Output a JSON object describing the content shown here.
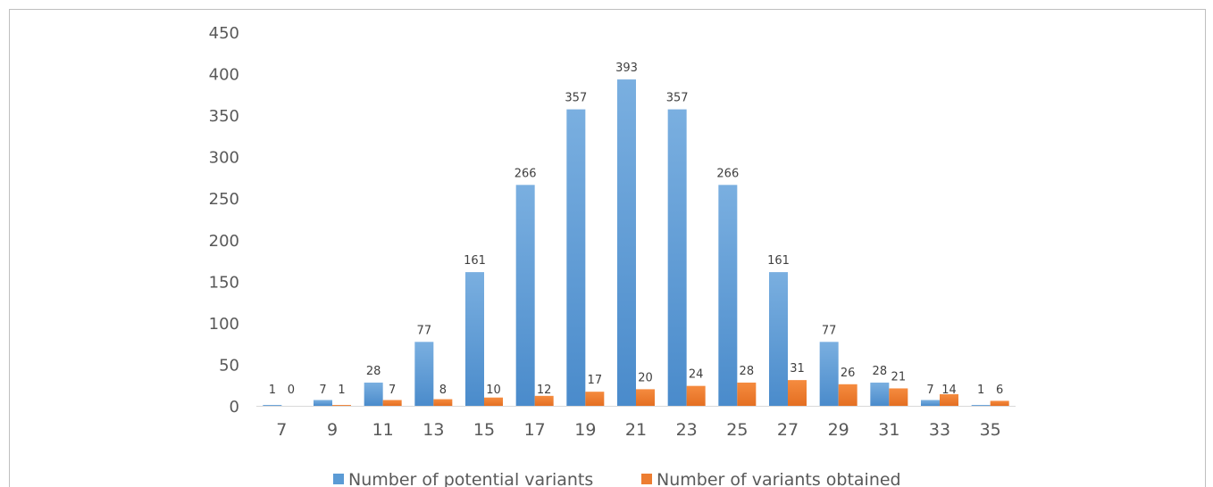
{
  "chart_data": {
    "type": "bar",
    "title": "",
    "xlabel": "",
    "ylabel": "",
    "categories": [
      "7",
      "9",
      "11",
      "13",
      "15",
      "17",
      "19",
      "21",
      "23",
      "25",
      "27",
      "29",
      "31",
      "33",
      "35"
    ],
    "series": [
      {
        "name": "Number of potential variants",
        "color": "#5b9bd5",
        "values": [
          1,
          7,
          28,
          77,
          161,
          266,
          357,
          393,
          357,
          266,
          161,
          77,
          28,
          7,
          1
        ]
      },
      {
        "name": "Number of variants obtained",
        "color": "#ed7d31",
        "values": [
          0,
          1,
          7,
          8,
          10,
          12,
          17,
          20,
          24,
          28,
          31,
          26,
          21,
          14,
          6
        ]
      }
    ],
    "ylim": [
      0,
      450
    ],
    "yticks": [
      "0",
      "50",
      "100",
      "150",
      "200",
      "250",
      "300",
      "350",
      "400",
      "450"
    ],
    "grid": false,
    "legend": "bottom",
    "data_labels": true
  }
}
